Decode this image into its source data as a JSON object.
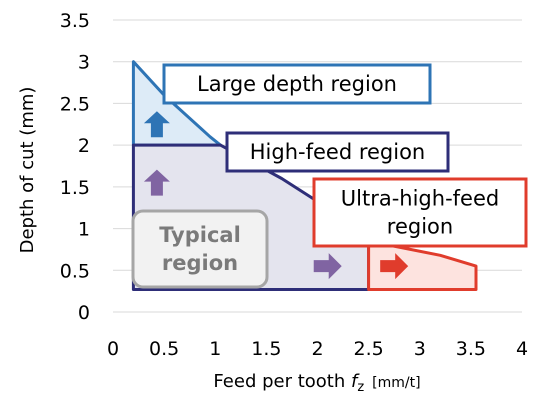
{
  "chart_data": {
    "type": "area",
    "xlabel_main": "Feed per tooth ",
    "xlabel_var": "f",
    "xlabel_sub": "z",
    "xlabel_unit": "[mm/t]",
    "ylabel": "Depth of cut (mm)",
    "xlim": [
      0,
      4
    ],
    "ylim": [
      0,
      3.5
    ],
    "x_ticks": [
      "0",
      "0.5",
      "1",
      "1.5",
      "2",
      "2.5",
      "3",
      "3.5",
      "4"
    ],
    "y_ticks": [
      "0",
      "0.5",
      "1",
      "1.5",
      "2",
      "2.5",
      "3",
      "3.5"
    ],
    "regions": [
      {
        "id": "large-depth",
        "label_lines": [
          "Large depth region"
        ],
        "color": "#2e74b5",
        "fill": "#ddebf7",
        "polygon": [
          [
            0.2,
            3.0
          ],
          [
            0.2,
            2.0
          ],
          [
            1.05,
            2.0
          ],
          [
            0.95,
            2.1
          ],
          [
            0.5,
            2.6
          ]
        ],
        "arrow": "up",
        "arrow_at": [
          0.4,
          2.25
        ]
      },
      {
        "id": "typical-high-feed",
        "label_lines": [
          "High-feed region"
        ],
        "color": "#2e2e78",
        "fill": "#e4e4ee",
        "polygon": [
          [
            0.2,
            2.0
          ],
          [
            1.05,
            2.0
          ],
          [
            1.65,
            1.6
          ],
          [
            2.35,
            1.05
          ],
          [
            2.5,
            0.85
          ],
          [
            2.5,
            0.27
          ],
          [
            0.2,
            0.27
          ]
        ],
        "arrow": "up",
        "arrow_at": [
          0.4,
          1.55
        ]
      },
      {
        "id": "ultra-high-feed",
        "label_lines": [
          "Ultra-high-feed",
          "region"
        ],
        "color": "#e03c2c",
        "fill": "#fde3df",
        "polygon": [
          [
            2.5,
            0.85
          ],
          [
            2.5,
            0.27
          ],
          [
            3.55,
            0.27
          ],
          [
            3.55,
            0.55
          ],
          [
            3.2,
            0.68
          ]
        ],
        "arrow": "right",
        "arrow_at": [
          2.75,
          0.55
        ]
      }
    ],
    "typical_label_lines": [
      "Typical",
      "region"
    ],
    "high_feed_arrow": {
      "direction": "right",
      "at": [
        2.1,
        0.55
      ],
      "color": "#8064a2"
    },
    "arrow_colors": {
      "large": "#2e74b5",
      "high": "#8064a2",
      "ultra": "#e03c2c"
    }
  }
}
